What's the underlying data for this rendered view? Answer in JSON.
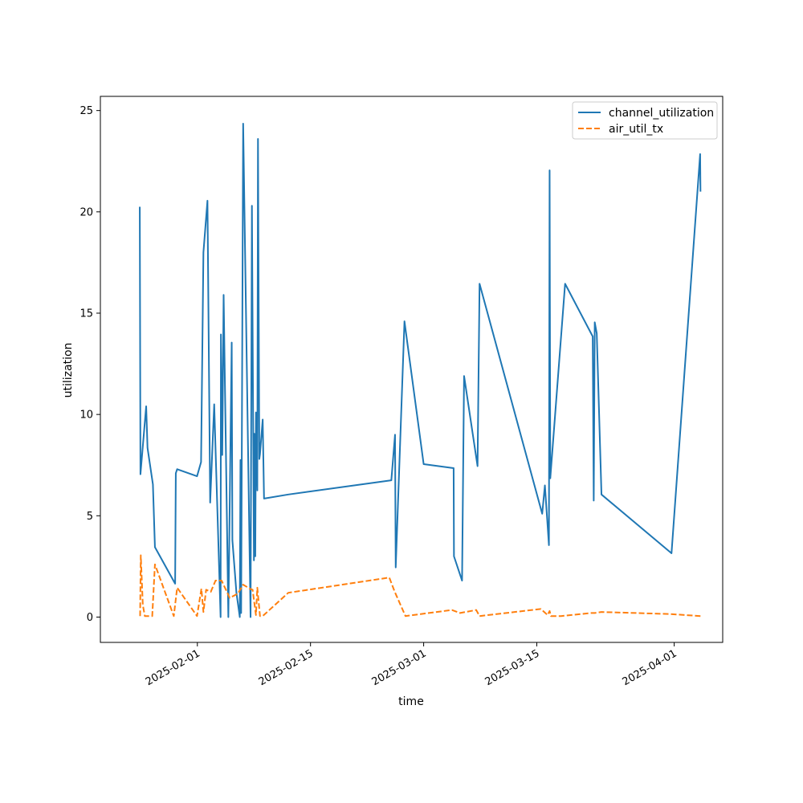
{
  "chart_data": {
    "type": "line",
    "xlabel": "time",
    "ylabel": "utilization",
    "xlim": [
      "2025-01-20",
      "2025-04-07"
    ],
    "ylim": [
      -1.25,
      25.7
    ],
    "x_ticks": [
      "2025-02-01",
      "2025-02-15",
      "2025-03-01",
      "2025-03-15",
      "2025-04-01"
    ],
    "y_ticks": [
      0,
      5,
      10,
      15,
      20,
      25
    ],
    "grid": false,
    "legend_position": "top-right",
    "series": [
      {
        "name": "channel_utilization",
        "color": "#1f77b4",
        "style": "solid",
        "points": [
          [
            "2025-01-24 21:00",
            20.25
          ],
          [
            "2025-01-24 23:00",
            7.05
          ],
          [
            "2025-01-25 16:00",
            10.4
          ],
          [
            "2025-01-25 20:00",
            8.35
          ],
          [
            "2025-01-26 12:00",
            6.55
          ],
          [
            "2025-01-26 18:00",
            3.45
          ],
          [
            "2025-01-29 06:00",
            1.65
          ],
          [
            "2025-01-29 08:00",
            7.1
          ],
          [
            "2025-01-29 12:00",
            7.3
          ],
          [
            "2025-01-31 23:00",
            6.95
          ],
          [
            "2025-02-01 11:00",
            7.65
          ],
          [
            "2025-02-01 18:00",
            18.0
          ],
          [
            "2025-02-02 06:00",
            20.55
          ],
          [
            "2025-02-02 14:00",
            5.65
          ],
          [
            "2025-02-03 02:00",
            10.5
          ],
          [
            "2025-02-03 21:00",
            0.0
          ],
          [
            "2025-02-03 22:00",
            13.95
          ],
          [
            "2025-02-04 02:00",
            8.0
          ],
          [
            "2025-02-04 06:00",
            15.9
          ],
          [
            "2025-02-04 20:00",
            0.0
          ],
          [
            "2025-02-05 06:00",
            13.55
          ],
          [
            "2025-02-05 08:00",
            3.8
          ],
          [
            "2025-02-05 20:00",
            1.2
          ],
          [
            "2025-02-06 06:00",
            0.0
          ],
          [
            "2025-02-06 08:00",
            7.75
          ],
          [
            "2025-02-06 10:00",
            0.2
          ],
          [
            "2025-02-06 16:00",
            24.35
          ],
          [
            "2025-02-07 14:00",
            0.0
          ],
          [
            "2025-02-07 18:00",
            20.3
          ],
          [
            "2025-02-08 00:00",
            2.8
          ],
          [
            "2025-02-08 01:00",
            9.05
          ],
          [
            "2025-02-08 04:00",
            3.0
          ],
          [
            "2025-02-08 06:00",
            10.1
          ],
          [
            "2025-02-08 10:00",
            6.25
          ],
          [
            "2025-02-08 12:00",
            23.6
          ],
          [
            "2025-02-08 16:00",
            7.8
          ],
          [
            "2025-02-08 18:00",
            8.05
          ],
          [
            "2025-02-09 02:00",
            9.75
          ],
          [
            "2025-02-09 06:00",
            5.85
          ],
          [
            "2025-02-12 06:00",
            6.05
          ],
          [
            "2025-02-25 00:00",
            6.75
          ],
          [
            "2025-02-25 11:00",
            9.0
          ],
          [
            "2025-02-25 13:00",
            2.45
          ],
          [
            "2025-02-26 15:00",
            14.6
          ],
          [
            "2025-02-26 23:00",
            13.6
          ],
          [
            "2025-03-01 00:00",
            7.55
          ],
          [
            "2025-03-04 17:00",
            7.35
          ],
          [
            "2025-03-04 18:00",
            3.0
          ],
          [
            "2025-03-05 18:00",
            1.8
          ],
          [
            "2025-03-06 00:00",
            11.9
          ],
          [
            "2025-03-07 16:00",
            7.45
          ],
          [
            "2025-03-07 22:00",
            16.45
          ],
          [
            "2025-03-15 16:00",
            5.1
          ],
          [
            "2025-03-16 00:00",
            6.5
          ],
          [
            "2025-03-16 12:00",
            3.55
          ],
          [
            "2025-03-16 14:00",
            22.05
          ],
          [
            "2025-03-16 16:00",
            6.85
          ],
          [
            "2025-03-18 12:00",
            16.45
          ],
          [
            "2025-03-21 22:00",
            13.85
          ],
          [
            "2025-03-22 01:00",
            5.75
          ],
          [
            "2025-03-22 04:00",
            14.55
          ],
          [
            "2025-03-22 10:00",
            14.0
          ],
          [
            "2025-03-23 00:00",
            6.05
          ],
          [
            "2025-03-31 16:00",
            3.15
          ],
          [
            "2025-04-04 05:00",
            22.85
          ],
          [
            "2025-04-04 06:00",
            21.0
          ]
        ]
      },
      {
        "name": "air_util_tx",
        "color": "#ff7f0e",
        "style": "dashed",
        "points": [
          [
            "2025-01-24 22:00",
            0.05
          ],
          [
            "2025-01-25 00:00",
            3.05
          ],
          [
            "2025-01-25 06:00",
            0.6
          ],
          [
            "2025-01-25 12:00",
            0.05
          ],
          [
            "2025-01-26 10:00",
            0.05
          ],
          [
            "2025-01-26 18:00",
            2.6
          ],
          [
            "2025-01-29 02:00",
            0.05
          ],
          [
            "2025-01-29 12:00",
            1.45
          ],
          [
            "2025-01-31 23:00",
            0.05
          ],
          [
            "2025-02-01 12:00",
            1.4
          ],
          [
            "2025-02-01 18:00",
            0.25
          ],
          [
            "2025-02-02 02:00",
            1.35
          ],
          [
            "2025-02-02 16:00",
            1.25
          ],
          [
            "2025-02-03 06:00",
            1.8
          ],
          [
            "2025-02-04 00:00",
            1.8
          ],
          [
            "2025-02-05 00:00",
            0.95
          ],
          [
            "2025-02-06 00:00",
            1.15
          ],
          [
            "2025-02-06 16:00",
            1.6
          ],
          [
            "2025-02-07 12:00",
            1.4
          ],
          [
            "2025-02-07 20:00",
            1.35
          ],
          [
            "2025-02-08 06:00",
            0.1
          ],
          [
            "2025-02-08 10:00",
            1.45
          ],
          [
            "2025-02-08 18:00",
            0.05
          ],
          [
            "2025-02-09 02:00",
            0.05
          ],
          [
            "2025-02-12 06:00",
            1.2
          ],
          [
            "2025-02-24 18:00",
            1.95
          ],
          [
            "2025-02-25 10:00",
            1.25
          ],
          [
            "2025-02-26 18:00",
            0.05
          ],
          [
            "2025-03-04 12:00",
            0.35
          ],
          [
            "2025-03-05 12:00",
            0.2
          ],
          [
            "2025-03-07 12:00",
            0.35
          ],
          [
            "2025-03-07 22:00",
            0.05
          ],
          [
            "2025-03-15 12:00",
            0.4
          ],
          [
            "2025-03-16 08:00",
            0.1
          ],
          [
            "2025-03-16 14:00",
            0.3
          ],
          [
            "2025-03-16 18:00",
            0.05
          ],
          [
            "2025-03-18 00:00",
            0.05
          ],
          [
            "2025-03-21 18:00",
            0.2
          ],
          [
            "2025-03-22 04:00",
            0.2
          ],
          [
            "2025-03-23 00:00",
            0.25
          ],
          [
            "2025-03-31 12:00",
            0.15
          ],
          [
            "2025-04-04 06:00",
            0.05
          ]
        ]
      }
    ]
  }
}
